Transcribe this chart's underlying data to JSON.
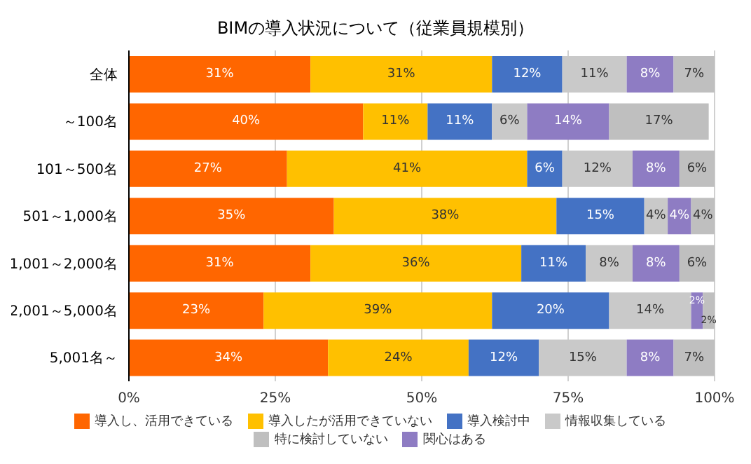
{
  "chart_data": {
    "type": "bar",
    "orientation": "horizontal",
    "stacked": true,
    "title": "BIMの導入状況について（従業員規模別）",
    "categories": [
      "全体",
      "～100名",
      "101～500名",
      "501～1,000名",
      "1,001～2,000名",
      "2,001～5,000名",
      "5,001名～"
    ],
    "series": [
      {
        "name": "導入し、活用できている",
        "color": "#ff6600",
        "values": [
          31,
          40,
          27,
          35,
          31,
          23,
          34
        ],
        "value_labels": [
          "31%",
          "40%",
          "27%",
          "35%",
          "31%",
          "23%",
          "34%"
        ]
      },
      {
        "name": "導入したが活用できていない",
        "color": "#ffc000",
        "values": [
          31,
          11,
          41,
          38,
          36,
          39,
          24
        ],
        "value_labels": [
          "31%",
          "11%",
          "41%",
          "38%",
          "36%",
          "39%",
          "24%"
        ]
      },
      {
        "name": "導入検討中",
        "color": "#4472c4",
        "values": [
          12,
          11,
          6,
          15,
          11,
          20,
          12
        ],
        "value_labels": [
          "12%",
          "11%",
          "6%",
          "15%",
          "11%",
          "20%",
          "12%"
        ]
      },
      {
        "name": "情報収集している",
        "color": "#c9c9c9",
        "values": [
          11,
          6,
          12,
          4,
          8,
          14,
          15
        ],
        "value_labels": [
          "11%",
          "6%",
          "12%",
          "4%",
          "8%",
          "14%",
          "15%"
        ]
      },
      {
        "name": "関心はある",
        "color": "#8e7cc3",
        "values": [
          8,
          14,
          8,
          4,
          8,
          2,
          8
        ],
        "value_labels": [
          "8%",
          "14%",
          "8%",
          "4%",
          "8%",
          "2%",
          "8%"
        ]
      },
      {
        "name": "特に検討していない",
        "color": "#bfbfbf",
        "values": [
          7,
          17,
          6,
          4,
          6,
          2,
          7
        ],
        "value_labels": [
          "7%",
          "17%",
          "6%",
          "4%",
          "6%",
          "2%",
          "7%"
        ]
      }
    ],
    "xlim": [
      0,
      100
    ],
    "xticks": [
      {
        "value": 0,
        "label": "0%"
      },
      {
        "value": 25,
        "label": "25%"
      },
      {
        "value": 50,
        "label": "50%"
      },
      {
        "value": 75,
        "label": "75%"
      },
      {
        "value": 100,
        "label": "100%"
      }
    ],
    "grid": "x",
    "legend": "bottom"
  }
}
